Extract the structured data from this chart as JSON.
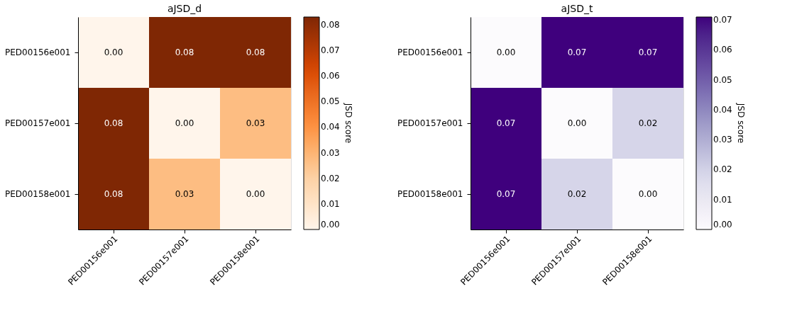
{
  "chart_data": [
    {
      "type": "heatmap",
      "title": "aJSD_d",
      "clabel": "JSD score",
      "grid": false,
      "categories": [
        "PED00156e001",
        "PED00157e001",
        "PED00158e001"
      ],
      "y_categories": [
        "PED00156e001",
        "PED00157e001",
        "PED00158e001"
      ],
      "cells": [
        [
          0.0,
          0.083,
          0.083
        ],
        [
          0.083,
          0.0,
          0.027
        ],
        [
          0.083,
          0.027,
          0.0
        ]
      ],
      "cell_labels": [
        [
          "0.00",
          "0.08",
          "0.08"
        ],
        [
          "0.08",
          "0.00",
          "0.03"
        ],
        [
          "0.08",
          "0.03",
          "0.00"
        ]
      ],
      "clim": [
        0,
        0.083
      ],
      "cticks": [
        {
          "value": 0,
          "label": "0.00"
        },
        {
          "value": 0.01,
          "label": "0.01"
        },
        {
          "value": 0.02,
          "label": "0.02"
        },
        {
          "value": 0.03,
          "label": "0.03"
        },
        {
          "value": 0.04,
          "label": "0.04"
        },
        {
          "value": 0.05,
          "label": "0.05"
        },
        {
          "value": 0.06,
          "label": "0.06"
        },
        {
          "value": 0.07,
          "label": "0.07"
        },
        {
          "value": 0.08,
          "label": "0.08"
        }
      ]
    },
    {
      "type": "heatmap",
      "title": "aJSD_t",
      "clabel": "JSD score",
      "grid": false,
      "categories": [
        "PED00156e001",
        "PED00157e001",
        "PED00158e001"
      ],
      "y_categories": [
        "PED00156e001",
        "PED00157e001",
        "PED00158e001"
      ],
      "cells": [
        [
          0.0,
          0.071,
          0.071
        ],
        [
          0.071,
          0.0,
          0.019
        ],
        [
          0.071,
          0.019,
          0.0
        ]
      ],
      "cell_labels": [
        [
          "0.00",
          "0.07",
          "0.07"
        ],
        [
          "0.07",
          "0.00",
          "0.02"
        ],
        [
          "0.07",
          "0.02",
          "0.00"
        ]
      ],
      "clim": [
        0,
        0.071
      ],
      "cticks": [
        {
          "value": 0,
          "label": "0.00"
        },
        {
          "value": 0.01,
          "label": "0.01"
        },
        {
          "value": 0.02,
          "label": "0.02"
        },
        {
          "value": 0.03,
          "label": "0.03"
        },
        {
          "value": 0.04,
          "label": "0.04"
        },
        {
          "value": 0.05,
          "label": "0.05"
        },
        {
          "value": 0.06,
          "label": "0.06"
        },
        {
          "value": 0.07,
          "label": "0.07"
        }
      ]
    }
  ]
}
